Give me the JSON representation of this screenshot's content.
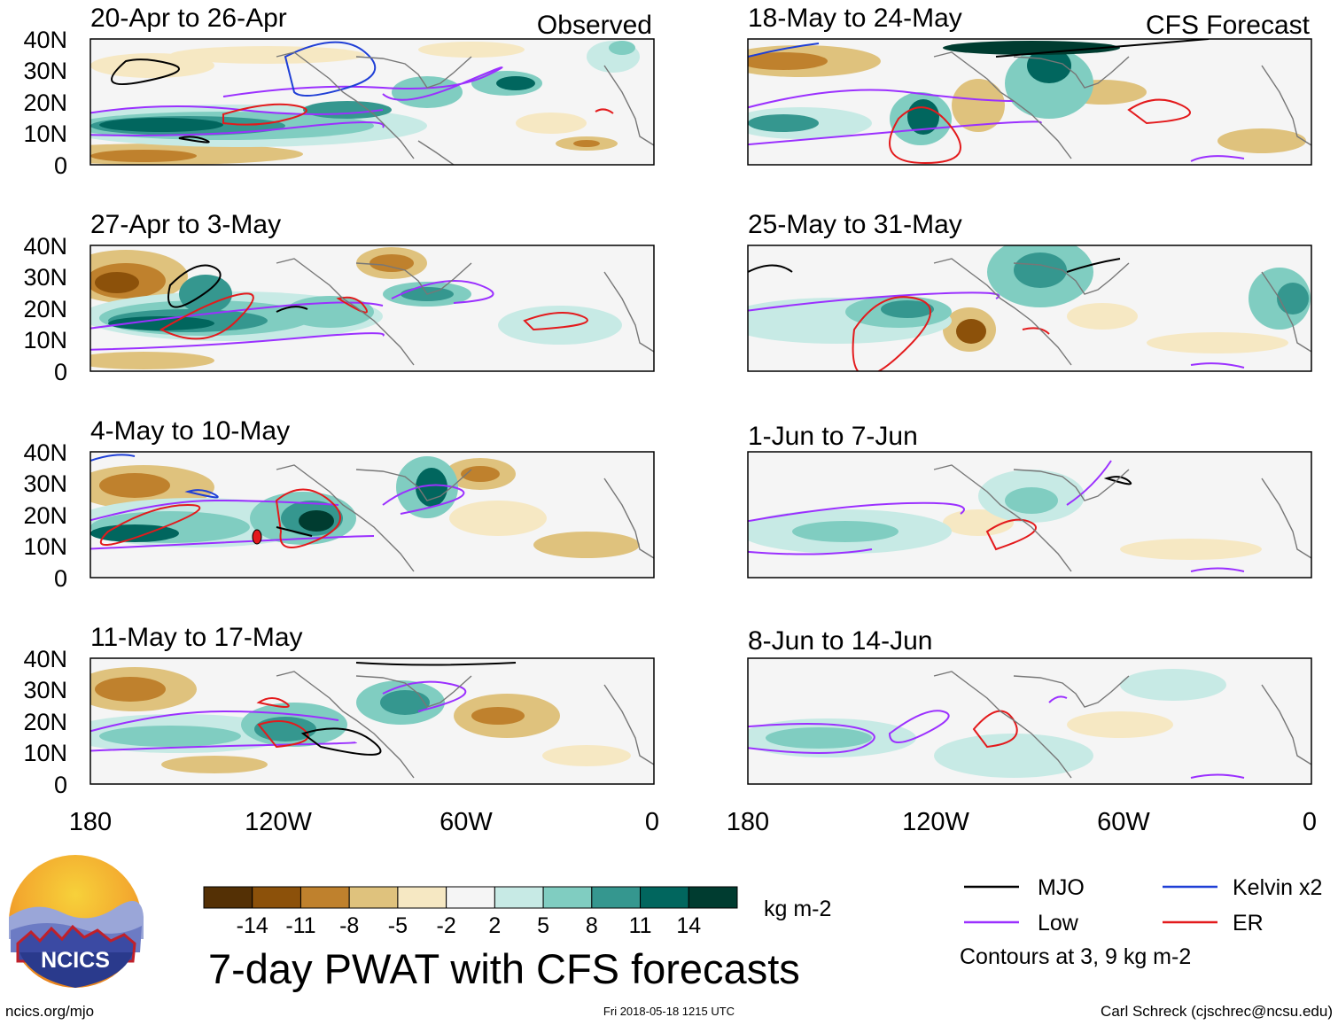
{
  "panels": [
    {
      "title": "20-Apr to 26-Apr",
      "tag": "Observed"
    },
    {
      "title": "27-Apr to 3-May",
      "tag": ""
    },
    {
      "title": "4-May to 10-May",
      "tag": ""
    },
    {
      "title": "11-May to 17-May",
      "tag": ""
    },
    {
      "title": "18-May to 24-May",
      "tag": "CFS Forecast"
    },
    {
      "title": "25-May to 31-May",
      "tag": ""
    },
    {
      "title": "1-Jun to 7-Jun",
      "tag": ""
    },
    {
      "title": "8-Jun to 14-Jun",
      "tag": ""
    }
  ],
  "lat_labels": [
    "40N",
    "30N",
    "20N",
    "10N",
    "0"
  ],
  "lon_labels": [
    "180",
    "120W",
    "60W",
    "0"
  ],
  "colorbar": {
    "levels": [
      "-14",
      "-11",
      "-8",
      "-5",
      "-2",
      "2",
      "5",
      "8",
      "11",
      "14"
    ],
    "colors": [
      "#543005",
      "#8c510a",
      "#bf812d",
      "#dfc27d",
      "#f6e8c3",
      "#f5f5f5",
      "#c7eae5",
      "#80cdc1",
      "#35978f",
      "#01665e",
      "#003c30"
    ],
    "unit": "kg m-2"
  },
  "legend": {
    "items": [
      {
        "label": "MJO",
        "color": "#000000"
      },
      {
        "label": "Kelvin x2",
        "color": "#1f3fd6"
      },
      {
        "label": "Low",
        "color": "#9b30ff"
      },
      {
        "label": "ER",
        "color": "#e31a1c"
      }
    ],
    "note": "Contours at 3, 9 kg m-2"
  },
  "main_title": "7-day PWAT with CFS forecasts",
  "logo_text": "NCICS",
  "footer": {
    "left": "ncics.org/mjo",
    "center": "Fri 2018-05-18 1215 UTC",
    "right": "Carl Schreck (cjschrec@ncsu.edu)"
  }
}
